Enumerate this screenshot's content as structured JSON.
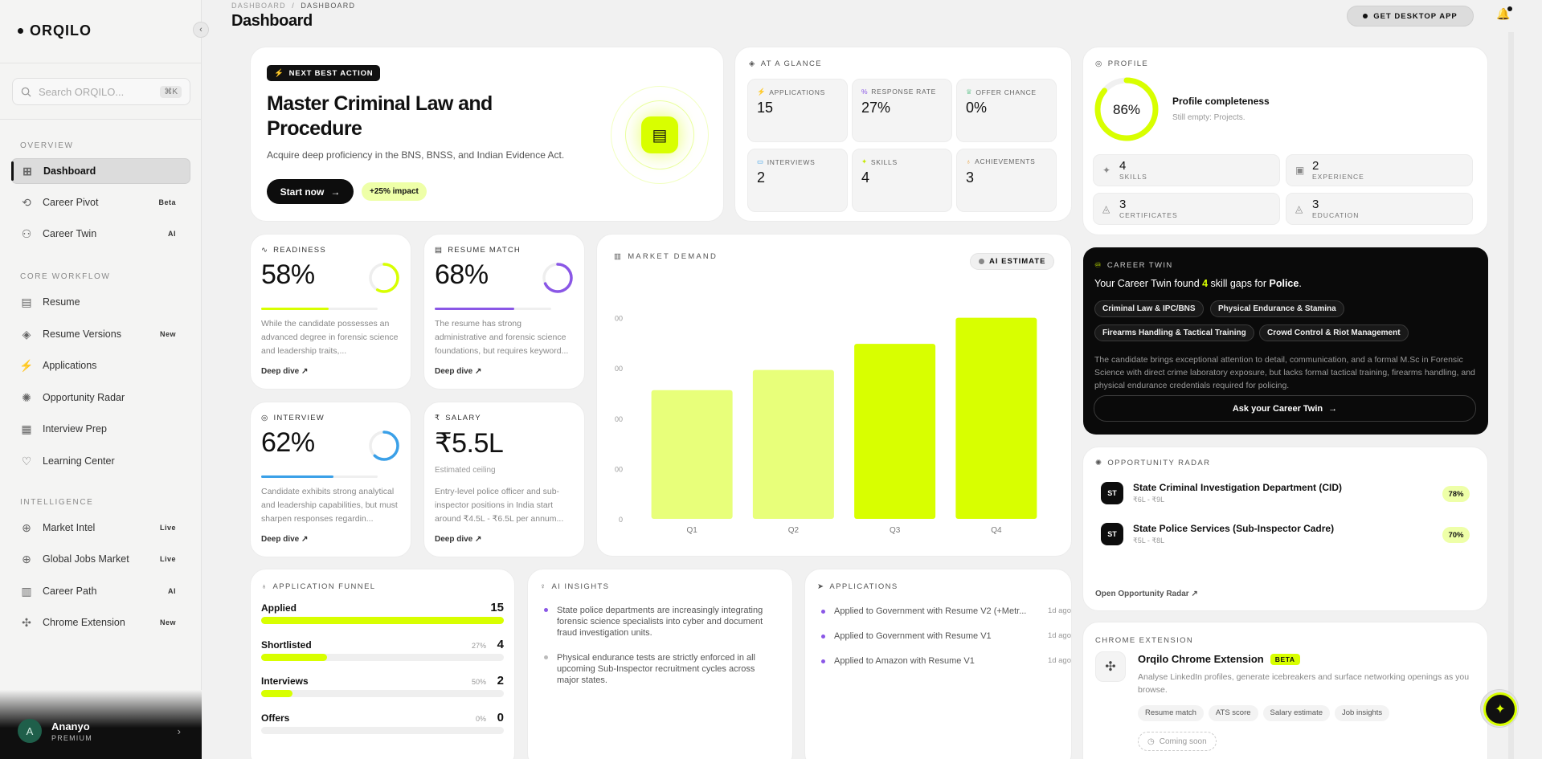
{
  "brand": {
    "name": "ORQILO"
  },
  "search": {
    "placeholder": "Search ORQILO...",
    "shortcut": "⌘K"
  },
  "sidebar": {
    "sections": [
      {
        "label": "OVERVIEW",
        "items": [
          {
            "label": "Dashboard",
            "icon": "dashboard-icon",
            "tag": "",
            "active": true
          },
          {
            "label": "Career Pivot",
            "icon": "refresh-icon",
            "tag": "Beta"
          },
          {
            "label": "Career Twin",
            "icon": "twin-icon",
            "tag": "AI"
          }
        ]
      },
      {
        "label": "CORE WORKFLOW",
        "items": [
          {
            "label": "Resume",
            "icon": "document-icon",
            "tag": ""
          },
          {
            "label": "Resume Versions",
            "icon": "layers-icon",
            "tag": "New"
          },
          {
            "label": "Applications",
            "icon": "bolt-icon",
            "tag": ""
          },
          {
            "label": "Opportunity Radar",
            "icon": "radar-icon",
            "tag": ""
          },
          {
            "label": "Interview Prep",
            "icon": "calendar-icon",
            "tag": ""
          },
          {
            "label": "Learning Center",
            "icon": "heart-icon",
            "tag": ""
          }
        ]
      },
      {
        "label": "INTELLIGENCE",
        "items": [
          {
            "label": "Market Intel",
            "icon": "globe-icon",
            "tag": "Live"
          },
          {
            "label": "Global Jobs Market",
            "icon": "globe-icon",
            "tag": "Live"
          },
          {
            "label": "Career Path",
            "icon": "map-icon",
            "tag": "AI"
          },
          {
            "label": "Chrome Extension",
            "icon": "puzzle-icon",
            "tag": "New"
          }
        ]
      }
    ],
    "user": {
      "initial": "A",
      "name": "Ananyo",
      "plan": "PREMIUM"
    }
  },
  "header": {
    "breadcrumb": [
      "DASHBOARD",
      "DASHBOARD"
    ],
    "title": "Dashboard",
    "desktop_btn": "GET DESKTOP APP"
  },
  "next_best_action": {
    "badge": "NEXT BEST ACTION",
    "title": "Master Criminal Law and Procedure",
    "description": "Acquire deep proficiency in the BNS, BNSS, and Indian Evidence Act.",
    "cta": "Start now",
    "impact": "+25% impact"
  },
  "at_a_glance": {
    "label": "AT A GLANCE",
    "tiles": [
      {
        "label": "APPLICATIONS",
        "value": "15",
        "icon": "bolt-icon",
        "color": "#c6e800"
      },
      {
        "label": "RESPONSE RATE",
        "value": "27%",
        "icon": "percent-icon",
        "color": "#8a57e6"
      },
      {
        "label": "OFFER CHANCE",
        "value": "0%",
        "icon": "trophy-icon",
        "color": "#2fb36a"
      },
      {
        "label": "INTERVIEWS",
        "value": "2",
        "icon": "chat-icon",
        "color": "#3aa0e8"
      },
      {
        "label": "SKILLS",
        "value": "4",
        "icon": "sparkle-icon",
        "color": "#c6e800"
      },
      {
        "label": "ACHIEVEMENTS",
        "value": "3",
        "icon": "award-icon",
        "color": "#e89a2f"
      }
    ]
  },
  "profile": {
    "label": "PROFILE",
    "completeness_pct": 86,
    "completeness_text": "86%",
    "title": "Profile completeness",
    "subtitle": "Still empty: Projects.",
    "stats": [
      {
        "value": "4",
        "label": "SKILLS",
        "icon": "sparkle-icon"
      },
      {
        "value": "2",
        "label": "EXPERIENCE",
        "icon": "briefcase-icon"
      },
      {
        "value": "3",
        "label": "CERTIFICATES",
        "icon": "cap-icon"
      },
      {
        "value": "3",
        "label": "EDUCATION",
        "icon": "cap-icon"
      }
    ]
  },
  "metrics": [
    {
      "label": "READINESS",
      "value": "58%",
      "pct": 58,
      "color": "#d8ff00",
      "icon": "pulse-icon",
      "desc": "While the candidate possesses an advanced degree in forensic science and leadership traits,...",
      "link": "Deep dive ↗"
    },
    {
      "label": "RESUME MATCH",
      "value": "68%",
      "pct": 68,
      "color": "#8a57e6",
      "icon": "document-icon",
      "desc": "The resume has strong administrative and forensic science foundations, but requires keyword...",
      "link": "Deep dive ↗"
    },
    {
      "label": "INTERVIEW",
      "value": "62%",
      "pct": 62,
      "color": "#3aa0e8",
      "icon": "target-icon",
      "desc": "Candidate exhibits strong analytical and leadership capabilities, but must sharpen responses regardin...",
      "link": "Deep dive ↗"
    },
    {
      "label": "SALARY",
      "value": "₹5.5L",
      "sub": "Estimated ceiling",
      "icon": "rupee-icon",
      "desc": "Entry-level police officer and sub-inspector positions in India start around ₹4.5L - ₹6.5L per annum...",
      "link": "Deep dive ↗"
    }
  ],
  "market": {
    "label": "MARKET DEMAND",
    "badge": "AI ESTIMATE"
  },
  "chart_data": {
    "type": "bar",
    "categories": [
      "Q1",
      "Q2",
      "Q3",
      "Q4"
    ],
    "values": [
      64,
      74,
      87,
      100
    ],
    "ytick_labels": [
      "0",
      "00",
      "00",
      "00",
      "00"
    ],
    "ylim": [
      0,
      115
    ],
    "grid": false,
    "colors": [
      "#e8ff7a",
      "#e8ff7a",
      "#d8ff00",
      "#d8ff00"
    ]
  },
  "career_twin": {
    "label": "CAREER TWIN",
    "headline_pre": "Your Career Twin found ",
    "gap_count": "4",
    "headline_mid": " skill gaps for ",
    "role": "Police",
    "gaps": [
      "Criminal Law & IPC/BNS",
      "Physical Endurance & Stamina",
      "Firearms Handling & Tactical Training",
      "Crowd Control & Riot Management"
    ],
    "summary": "The candidate brings exceptional attention to detail, communication, and a formal M.Sc in Forensic Science with direct crime laboratory exposure, but lacks formal tactical training, firearms handling, and physical endurance credentials required for policing.",
    "cta": "Ask your Career Twin"
  },
  "opportunity_radar": {
    "label": "OPPORTUNITY RADAR",
    "items": [
      {
        "initials": "ST",
        "title": "State Criminal Investigation Department (CID)",
        "salary": "₹6L - ₹9L",
        "score": "78%"
      },
      {
        "initials": "ST",
        "title": "State Police Services (Sub-Inspector Cadre)",
        "salary": "₹5L - ₹8L",
        "score": "70%"
      }
    ],
    "link": "Open Opportunity Radar ↗"
  },
  "chrome_ext": {
    "label": "CHROME EXTENSION",
    "title": "Orqilo Chrome Extension",
    "badge": "BETA",
    "desc": "Analyse LinkedIn profiles, generate icebreakers and surface networking openings as you browse.",
    "features": [
      "Resume match",
      "ATS score",
      "Salary estimate",
      "Job insights"
    ],
    "status": "Coming soon"
  },
  "funnel": {
    "label": "APPLICATION FUNNEL",
    "rows": [
      {
        "name": "Applied",
        "pct_text": "",
        "pct": 100,
        "value": "15"
      },
      {
        "name": "Shortlisted",
        "pct_text": "27%",
        "pct": 27,
        "value": "4"
      },
      {
        "name": "Interviews",
        "pct_text": "50%",
        "pct": 13,
        "value": "2"
      },
      {
        "name": "Offers",
        "pct_text": "0%",
        "pct": 0,
        "value": "0"
      }
    ]
  },
  "insights": {
    "label": "AI INSIGHTS",
    "items": [
      {
        "text": "State police departments are increasingly integrating forensic science specialists into cyber and document fraud investigation units.",
        "color": "#8a57e6"
      },
      {
        "text": "Physical endurance tests are strictly enforced in all upcoming Sub-Inspector recruitment cycles across major states.",
        "color": "#bbbbbb"
      }
    ]
  },
  "applications": {
    "label": "APPLICATIONS",
    "items": [
      {
        "text": "Applied to Government with Resume V2 (+Metr...",
        "ago": "1d ago"
      },
      {
        "text": "Applied to Government with Resume V1",
        "ago": "1d ago"
      },
      {
        "text": "Applied to Amazon with Resume V1",
        "ago": "1d ago"
      }
    ]
  }
}
